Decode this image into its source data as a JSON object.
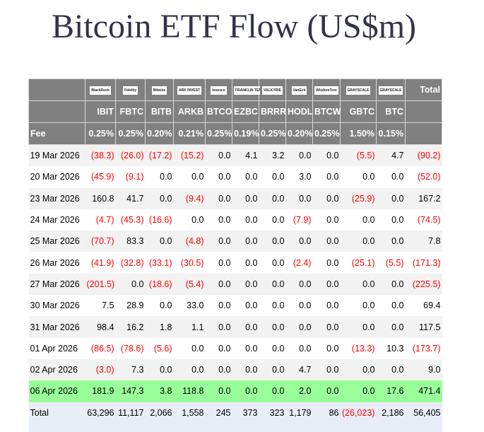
{
  "title": "Bitcoin ETF Flow (US$m)",
  "issuers": [
    "BlackRock",
    "Fidelity",
    "Bitwise",
    "ARK INVEST",
    "Invesco",
    "FRANKLIN TEMPLETON",
    "VALKYRIE",
    "VanEck",
    "WisdomTree",
    "GRAYSCALE",
    "GRAYSCALE"
  ],
  "total_label": "Total",
  "tickers": [
    "IBIT",
    "FBTC",
    "BITB",
    "ARKB",
    "BTCO",
    "EZBC",
    "BRRR",
    "HODL",
    "BTCW",
    "GBTC",
    "BTC"
  ],
  "fee_label": "Fee",
  "fees": [
    "0.25%",
    "0.25%",
    "0.20%",
    "0.21%",
    "0.25%",
    "0.19%",
    "0.25%",
    "0.20%",
    "0.25%",
    "1.50%",
    "0.15%"
  ],
  "highlight_color": "#99ff99",
  "negative_color": "#ff0000",
  "rows": [
    {
      "date": "19 Mar 2026",
      "values": [
        "(38.3)",
        "(26.0)",
        "(17.2)",
        "(15.2)",
        "0.0",
        "4.1",
        "3.2",
        "0.0",
        "0.0",
        "(5.5)",
        "4.7",
        "(90.2)"
      ]
    },
    {
      "date": "20 Mar 2026",
      "values": [
        "(45.9)",
        "(9.1)",
        "0.0",
        "0.0",
        "0.0",
        "0.0",
        "0.0",
        "3.0",
        "0.0",
        "0.0",
        "0.0",
        "(52.0)"
      ]
    },
    {
      "date": "23 Mar 2026",
      "values": [
        "160.8",
        "41.7",
        "0.0",
        "(9.4)",
        "0.0",
        "0.0",
        "0.0",
        "0.0",
        "0.0",
        "(25.9)",
        "0.0",
        "167.2"
      ]
    },
    {
      "date": "24 Mar 2026",
      "values": [
        "(4.7)",
        "(45.3)",
        "(16.6)",
        "0.0",
        "0.0",
        "0.0",
        "0.0",
        "(7.9)",
        "0.0",
        "0.0",
        "0.0",
        "(74.5)"
      ]
    },
    {
      "date": "25 Mar 2026",
      "values": [
        "(70.7)",
        "83.3",
        "0.0",
        "(4.8)",
        "0.0",
        "0.0",
        "0.0",
        "0.0",
        "0.0",
        "0.0",
        "0.0",
        "7.8"
      ]
    },
    {
      "date": "26 Mar 2026",
      "values": [
        "(41.9)",
        "(32.8)",
        "(33.1)",
        "(30.5)",
        "0.0",
        "0.0",
        "0.0",
        "(2.4)",
        "0.0",
        "(25.1)",
        "(5.5)",
        "(171.3)"
      ]
    },
    {
      "date": "27 Mar 2026",
      "values": [
        "(201.5)",
        "0.0",
        "(18.6)",
        "(5.4)",
        "0.0",
        "0.0",
        "0.0",
        "0.0",
        "0.0",
        "0.0",
        "0.0",
        "(225.5)"
      ]
    },
    {
      "date": "30 Mar 2026",
      "values": [
        "7.5",
        "28.9",
        "0.0",
        "33.0",
        "0.0",
        "0.0",
        "0.0",
        "0.0",
        "0.0",
        "0.0",
        "0.0",
        "69.4"
      ]
    },
    {
      "date": "31 Mar 2026",
      "values": [
        "98.4",
        "16.2",
        "1.8",
        "1.1",
        "0.0",
        "0.0",
        "0.0",
        "0.0",
        "0.0",
        "0.0",
        "0.0",
        "117.5"
      ]
    },
    {
      "date": "01 Apr 2026",
      "values": [
        "(86.5)",
        "(78.6)",
        "(5.6)",
        "0.0",
        "0.0",
        "0.0",
        "0.0",
        "0.0",
        "0.0",
        "(13.3)",
        "10.3",
        "(173.7)"
      ]
    },
    {
      "date": "02 Apr 2026",
      "values": [
        "(3.0)",
        "7.3",
        "0.0",
        "0.0",
        "0.0",
        "0.0",
        "0.0",
        "4.7",
        "0.0",
        "0.0",
        "0.0",
        "9.0"
      ]
    },
    {
      "date": "06 Apr 2026",
      "values": [
        "181.9",
        "147.3",
        "3.8",
        "118.8",
        "0.0",
        "0.0",
        "0.0",
        "2.0",
        "0.0",
        "0.0",
        "17.6",
        "471.4"
      ],
      "highlighted": true
    }
  ],
  "total_row": {
    "label": "Total",
    "values": [
      "63,296",
      "11,117",
      "2,066",
      "1,558",
      "245",
      "373",
      "323",
      "1,179",
      "86",
      "(26,023)",
      "2,186",
      "56,405"
    ]
  }
}
